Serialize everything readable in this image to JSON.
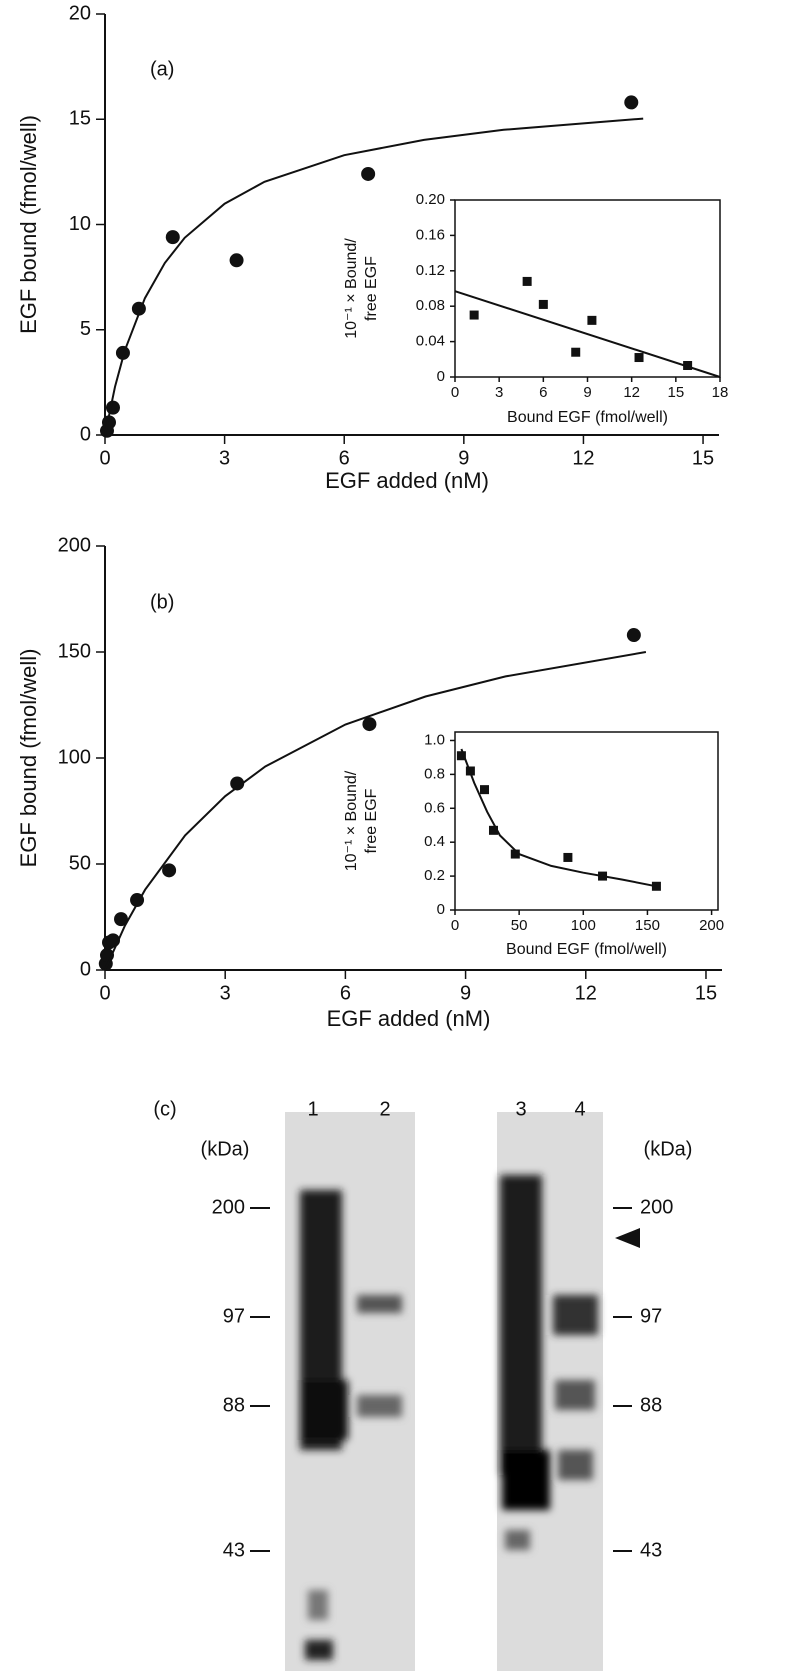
{
  "chart_data": [
    {
      "type": "scatter",
      "panel_label": "(a)",
      "x_label": "EGF added (nM)",
      "y_label": "EGF bound (fmol/well)",
      "xlim": [
        0,
        15.4
      ],
      "ylim": [
        0,
        20
      ],
      "xticks": [
        0,
        3,
        6,
        9,
        12,
        15
      ],
      "yticks": [
        0,
        5,
        10,
        15,
        20
      ],
      "series": [
        {
          "type": "scatter",
          "marker": "circle",
          "color": "#111111",
          "x": [
            0.05,
            0.1,
            0.2,
            0.45,
            0.85,
            1.7,
            3.3,
            6.6,
            13.2
          ],
          "values": [
            0.2,
            0.6,
            1.3,
            3.9,
            6.0,
            9.4,
            8.3,
            12.4,
            15.8
          ]
        },
        {
          "type": "line",
          "color": "#111111",
          "x": [
            0,
            0.25,
            0.5,
            1,
            1.5,
            2,
            3,
            4,
            6,
            8,
            10,
            13.5
          ],
          "values": [
            0,
            2.29,
            4.03,
            6.5,
            8.17,
            9.37,
            10.99,
            12.03,
            13.29,
            14.02,
            14.5,
            15.03
          ]
        }
      ]
    },
    {
      "type": "scatter",
      "x_label": "Bound EGF (fmol/well)",
      "y_label": [
        "10⁻¹ × Bound/",
        "free EGF"
      ],
      "xlim": [
        0,
        18
      ],
      "ylim": [
        0,
        0.2
      ],
      "xticks": [
        0,
        3,
        6,
        9,
        12,
        15,
        18
      ],
      "yticks": [
        0,
        0.04,
        0.08,
        0.12,
        0.16,
        {
          "value": 0.2,
          "label": "0.20"
        }
      ],
      "series": [
        {
          "type": "scatter",
          "marker": "square",
          "color": "#111111",
          "x": [
            1.3,
            4.9,
            6.0,
            8.2,
            9.3,
            12.5,
            15.8
          ],
          "values": [
            0.07,
            0.108,
            0.082,
            0.028,
            0.064,
            0.022,
            0.013
          ]
        },
        {
          "type": "line",
          "color": "#111111",
          "x": [
            0,
            18
          ],
          "values": [
            0.097,
            0
          ]
        }
      ]
    },
    {
      "type": "scatter",
      "panel_label": "(b)",
      "x_label": "EGF added (nM)",
      "y_label": "EGF bound (fmol/well)",
      "xlim": [
        0,
        15.4
      ],
      "ylim": [
        0,
        200
      ],
      "xticks": [
        0,
        3,
        6,
        9,
        12,
        15
      ],
      "yticks": [
        0,
        50,
        100,
        150,
        200
      ],
      "series": [
        {
          "type": "scatter",
          "marker": "circle",
          "color": "#111111",
          "x": [
            0.02,
            0.05,
            0.1,
            0.2,
            0.4,
            0.8,
            1.6,
            3.3,
            6.6,
            13.2
          ],
          "values": [
            3,
            7,
            13,
            14,
            24,
            33,
            47,
            88,
            116,
            158
          ]
        },
        {
          "type": "line",
          "color": "#111111",
          "x": [
            0,
            0.5,
            1,
            2,
            3,
            4,
            6,
            8,
            10,
            13.5
          ],
          "values": [
            0,
            21.0,
            37.9,
            63.5,
            82.0,
            96.0,
            115.8,
            129.0,
            138.5,
            150
          ]
        }
      ]
    },
    {
      "type": "scatter",
      "x_label": "Bound EGF (fmol/well)",
      "y_label": [
        "10⁻¹ × Bound/",
        "free EGF"
      ],
      "xlim": [
        0,
        205
      ],
      "ylim": [
        0,
        1.05
      ],
      "xticks": [
        0,
        50,
        100,
        150,
        200
      ],
      "yticks": [
        0,
        0.2,
        0.4,
        0.6,
        0.8,
        {
          "value": 1.0,
          "label": "1.0"
        }
      ],
      "series": [
        {
          "type": "scatter",
          "marker": "square",
          "color": "#111111",
          "x": [
            5,
            12,
            23,
            30,
            47,
            88,
            115,
            157
          ],
          "values": [
            0.91,
            0.82,
            0.71,
            0.47,
            0.33,
            0.31,
            0.2,
            0.14
          ]
        },
        {
          "type": "line",
          "color": "#111111",
          "x": [
            5,
            15,
            25,
            35,
            50,
            75,
            100,
            130,
            157
          ],
          "values": [
            0.95,
            0.75,
            0.58,
            0.44,
            0.33,
            0.26,
            0.22,
            0.18,
            0.14
          ]
        }
      ]
    }
  ],
  "gel": {
    "label": "(c)",
    "lanes": [
      "1",
      "2",
      "3",
      "4"
    ],
    "unit": "(kDa)",
    "markers": [
      "200",
      "97",
      "88",
      "43"
    ]
  }
}
